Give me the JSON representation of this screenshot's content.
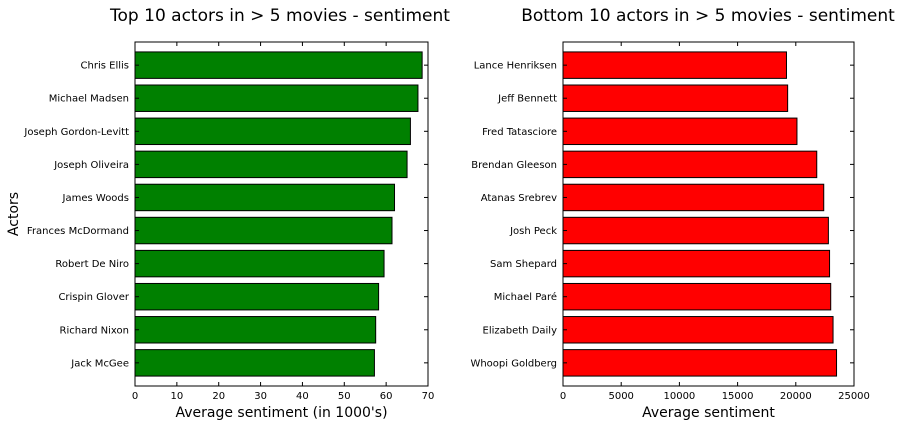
{
  "chart_data": [
    {
      "type": "bar",
      "orientation": "horizontal",
      "title": "Top 10 actors in > 5 movies - sentiment",
      "xlabel": "Average sentiment (in 1000's)",
      "ylabel": "Actors",
      "xlim": [
        0,
        70
      ],
      "xticks": [
        "0",
        "10",
        "20",
        "30",
        "40",
        "50",
        "60",
        "70"
      ],
      "bar_color": "#008000",
      "categories": [
        "Chris Ellis",
        "Michael Madsen",
        "Joseph Gordon-Levitt",
        "Joseph Oliveira",
        "James Woods",
        "Frances McDormand",
        "Robert De Niro",
        "Crispin Glover",
        "Richard Nixon",
        "Jack McGee"
      ],
      "values": [
        68.6,
        67.6,
        65.8,
        65.0,
        62.0,
        61.4,
        59.5,
        58.2,
        57.5,
        57.2
      ],
      "grid": false
    },
    {
      "type": "bar",
      "orientation": "horizontal",
      "title": "Bottom 10 actors in > 5 movies - sentiment",
      "xlabel": "Average sentiment",
      "ylabel": "",
      "xlim": [
        0,
        25000
      ],
      "xticks": [
        "0",
        "5000",
        "10000",
        "15000",
        "20000",
        "25000"
      ],
      "bar_color": "#ff0000",
      "categories": [
        "Lance Henriksen",
        "Jeff Bennett",
        "Fred Tatasciore",
        "Brendan Gleeson",
        "Atanas Srebrev",
        "Josh Peck",
        "Sam Shepard",
        "Michael Paré",
        "Elizabeth Daily",
        "Whoopi Goldberg"
      ],
      "values": [
        19200,
        19300,
        20100,
        21800,
        22400,
        22800,
        22900,
        23000,
        23200,
        23500
      ],
      "grid": false
    }
  ]
}
